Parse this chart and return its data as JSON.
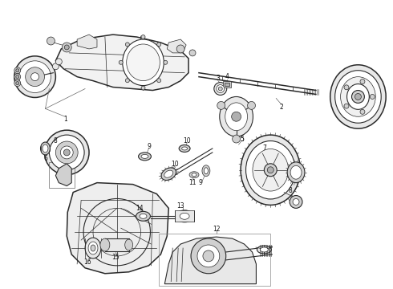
{
  "background_color": "#ffffff",
  "figsize": [
    4.9,
    3.6
  ],
  "dpi": 100,
  "lc": "#2a2a2a",
  "lw_thin": 0.5,
  "lw_med": 0.8,
  "lw_thick": 1.1,
  "gray_light": "#e8e8e8",
  "gray_med": "#d0d0d0",
  "gray_dark": "#b0b0b0",
  "white": "#ffffff"
}
